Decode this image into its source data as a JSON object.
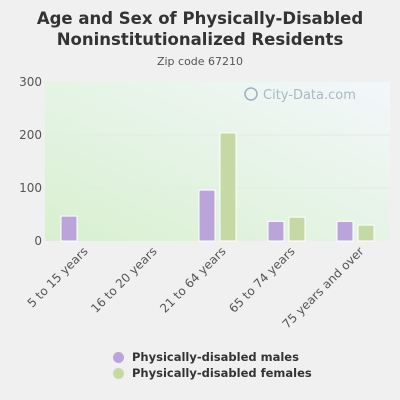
{
  "header": {
    "title_line1": "Age and Sex of Physically-Disabled",
    "title_line2": "Noninstitutionalized Residents",
    "subtitle": "Zip code 67210"
  },
  "watermark": "City-Data.com",
  "colors": {
    "males": "#b9a5d9",
    "females": "#c6d9a4",
    "plot_bg_top": "#f3f7fb",
    "plot_bg_bottom": "#d8f0d0",
    "axis_text": "#555555"
  },
  "chart_data": {
    "type": "bar",
    "categories": [
      "5 to 15 years",
      "16 to 20 years",
      "21 to 64 years",
      "65 to 74 years",
      "75 years and over"
    ],
    "series": [
      {
        "name": "Physically-disabled males",
        "values": [
          47,
          0,
          96,
          37,
          37
        ]
      },
      {
        "name": "Physically-disabled females",
        "values": [
          0,
          0,
          204,
          45,
          30
        ]
      }
    ],
    "ylim": [
      0,
      300
    ],
    "yticks": [
      0,
      100,
      200,
      300
    ],
    "grid": true,
    "legend": "bottom"
  },
  "legend": {
    "items": [
      {
        "label": "Physically-disabled males"
      },
      {
        "label": "Physically-disabled females"
      }
    ]
  }
}
